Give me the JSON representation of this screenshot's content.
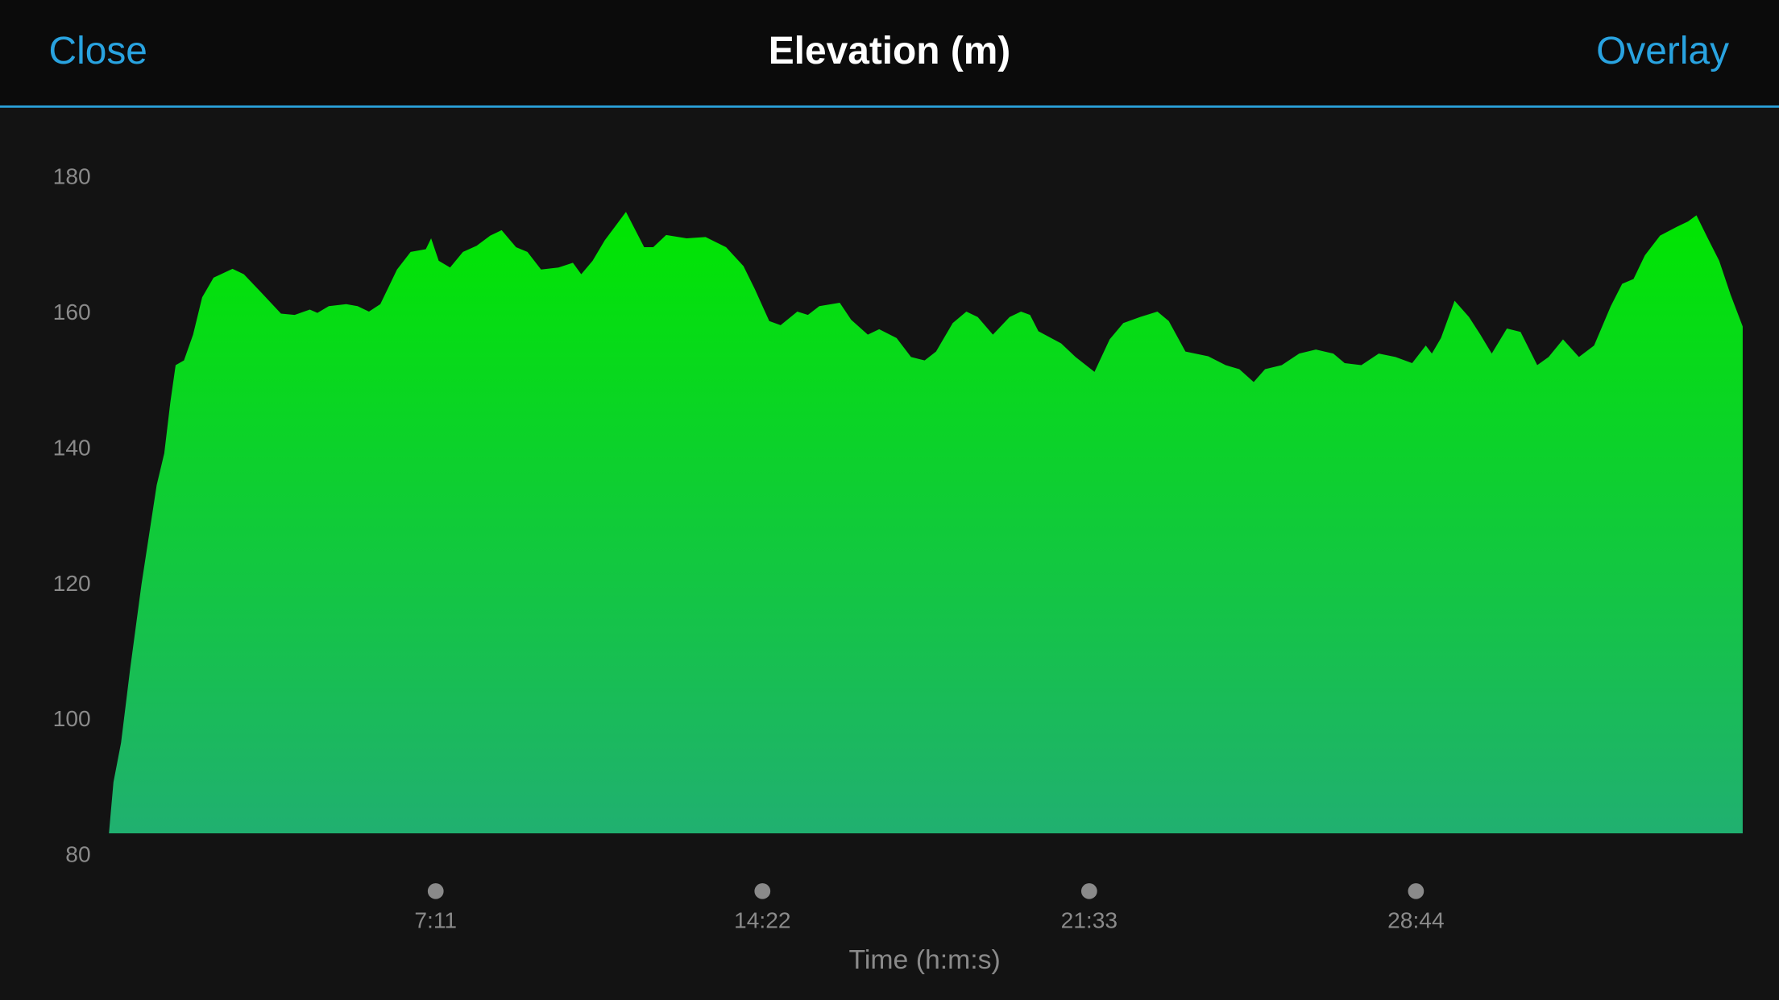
{
  "header": {
    "close": "Close",
    "overlay": "Overlay"
  },
  "chart_data": {
    "type": "area",
    "title": "Elevation (m)",
    "xlabel": "Time (h:m:s)",
    "color": "#00e000",
    "x": [
      0,
      6,
      16,
      28,
      43,
      63,
      73,
      81,
      88,
      99,
      111,
      123,
      138,
      163,
      178,
      201,
      227,
      245,
      265,
      275,
      290,
      313,
      328,
      343,
      358,
      380,
      398,
      418,
      425,
      435,
      450,
      467,
      485,
      503,
      518,
      537,
      552,
      570,
      593,
      612,
      623,
      638,
      654,
      682,
      706,
      718,
      735,
      762,
      787,
      814,
      837,
      852,
      871,
      886,
      908,
      922,
      937,
      964,
      979,
      1001,
      1016,
      1039,
      1058,
      1076,
      1091,
      1113,
      1131,
      1146,
      1166,
      1188,
      1203,
      1215,
      1226,
      1256,
      1275,
      1300,
      1320,
      1338,
      1360,
      1383,
      1398,
      1420,
      1450,
      1473,
      1491,
      1510,
      1525,
      1547,
      1570,
      1592,
      1615,
      1630,
      1652,
      1675,
      1697,
      1719,
      1737,
      1745,
      1757,
      1775,
      1794,
      1809,
      1824,
      1844,
      1862,
      1884,
      1899,
      1918,
      1939,
      1959,
      1981,
      1996,
      2011,
      2026,
      2046,
      2068,
      2083,
      2094,
      2109,
      2124,
      2139,
      2155
    ],
    "values": [
      83.3,
      90.9,
      96.7,
      107.6,
      120.1,
      134.7,
      139.4,
      146.9,
      152.4,
      153.1,
      156.9,
      162.4,
      165.3,
      166.6,
      165.8,
      163.1,
      160,
      159.8,
      160.6,
      160.1,
      161.1,
      161.4,
      161.1,
      160.3,
      161.4,
      166.5,
      169.1,
      169.5,
      171.1,
      167.8,
      166.8,
      169.1,
      170,
      171.5,
      172.3,
      169.8,
      169.1,
      166.5,
      166.8,
      167.5,
      165.8,
      167.8,
      170.8,
      175,
      169.8,
      169.8,
      171.6,
      171.1,
      171.3,
      169.8,
      167,
      163.6,
      158.9,
      158.3,
      160.3,
      159.8,
      161.1,
      161.6,
      159.1,
      156.9,
      157.7,
      156.4,
      153.6,
      153.1,
      154.4,
      158.6,
      160.3,
      159.5,
      156.9,
      159.5,
      160.3,
      159.8,
      157.4,
      155.6,
      153.6,
      151.4,
      156.2,
      158.6,
      159.5,
      160.3,
      158.9,
      154.4,
      153.7,
      152.4,
      151.8,
      149.9,
      151.8,
      152.4,
      154.1,
      154.7,
      154.1,
      152.7,
      152.4,
      154.1,
      153.6,
      152.7,
      155.3,
      154.1,
      156.4,
      161.9,
      159.5,
      156.9,
      154.1,
      157.8,
      157.3,
      152.4,
      153.6,
      156.2,
      153.6,
      155.3,
      161.1,
      164.4,
      165.1,
      168.6,
      171.5,
      172.8,
      173.6,
      174.5,
      171.1,
      167.8,
      162.8,
      158.1
    ],
    "xlim": [
      0,
      2155
    ],
    "xticks": [
      {
        "value": 431,
        "label": "7:11"
      },
      {
        "value": 862,
        "label": "14:22"
      },
      {
        "value": 1293,
        "label": "21:33"
      },
      {
        "value": 1724,
        "label": "28:44"
      }
    ],
    "ylim": [
      80,
      180
    ],
    "yticks": [
      80,
      100,
      120,
      140,
      160,
      180
    ]
  }
}
